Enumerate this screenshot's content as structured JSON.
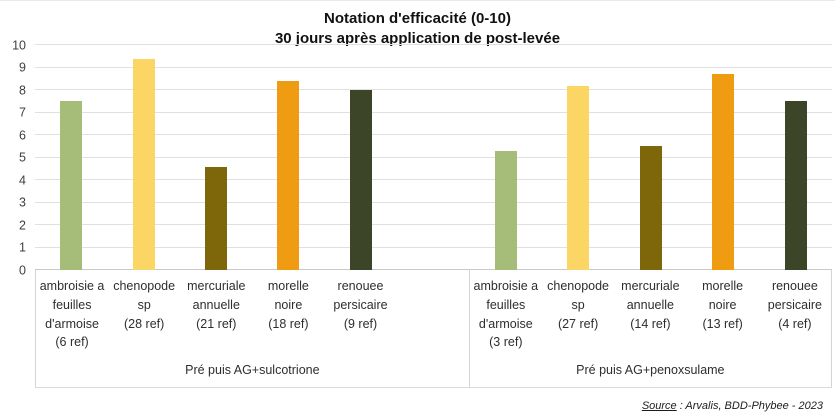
{
  "chart_data": {
    "type": "bar",
    "title": "Notation d'efficacité (0-10)",
    "subtitle": "30 jours après application de post-levée",
    "xlabel": "",
    "ylabel": "",
    "ylim": [
      0,
      10
    ],
    "yticks": [
      0,
      1,
      2,
      3,
      4,
      5,
      6,
      7,
      8,
      9,
      10
    ],
    "grid": "horizontal",
    "legend": "none",
    "groups": [
      {
        "label": "Pré puis AG+sulcotrione",
        "bars": [
          {
            "name": "ambroisie a feuilles d'armoise",
            "ref": "(6 ref)",
            "value": 7.5,
            "color": "#a6bd7a"
          },
          {
            "name": "chenopode sp",
            "ref": "(28 ref)",
            "value": 9.4,
            "color": "#fbd664"
          },
          {
            "name": "mercuriale annuelle",
            "ref": "(21 ref)",
            "value": 4.6,
            "color": "#7d670a"
          },
          {
            "name": "morelle noire",
            "ref": "(18 ref)",
            "value": 8.4,
            "color": "#f09c12"
          },
          {
            "name": "renouee persicaire",
            "ref": "(9 ref)",
            "value": 8.0,
            "color": "#3c4527"
          }
        ]
      },
      {
        "label": "Pré puis AG+penoxsulame",
        "bars": [
          {
            "name": "ambroisie a feuilles d'armoise",
            "ref": "(3 ref)",
            "value": 5.3,
            "color": "#a6bd7a"
          },
          {
            "name": "chenopode sp",
            "ref": "(27 ref)",
            "value": 8.2,
            "color": "#fbd664"
          },
          {
            "name": "mercuriale annuelle",
            "ref": "(14 ref)",
            "value": 5.5,
            "color": "#7d670a"
          },
          {
            "name": "morelle noire",
            "ref": "(13 ref)",
            "value": 8.7,
            "color": "#f09c12"
          },
          {
            "name": "renouee persicaire",
            "ref": "(4 ref)",
            "value": 7.5,
            "color": "#3c4527"
          }
        ]
      }
    ],
    "colors": {
      "ambroisie": "#a6bd7a",
      "chenopode": "#fbd664",
      "mercuriale": "#7d670a",
      "morelle": "#f09c12",
      "renouee": "#3c4527",
      "gridline": "#e0e0e0"
    }
  },
  "footer": {
    "source_label": "Source",
    "source_rest": " : Arvalis, BDD-Phybee - 2023"
  }
}
